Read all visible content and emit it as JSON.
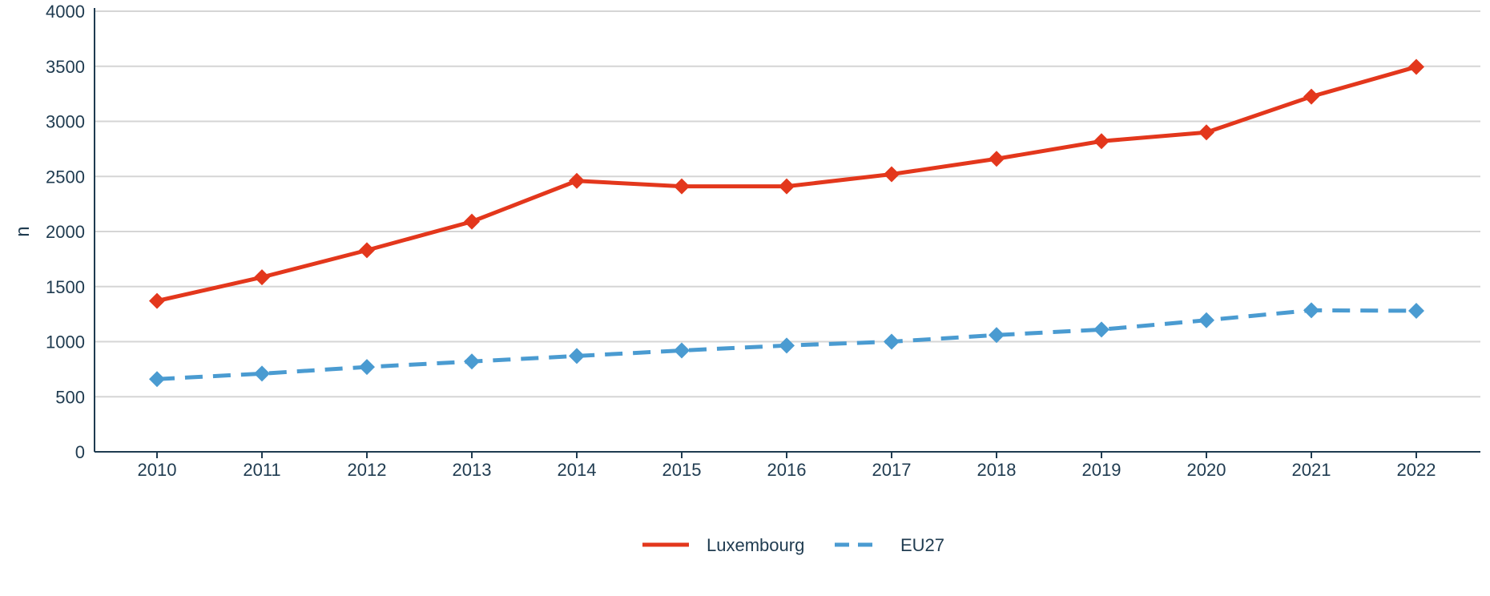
{
  "chart_data": {
    "type": "line",
    "x": [
      2010,
      2011,
      2012,
      2013,
      2014,
      2015,
      2016,
      2017,
      2018,
      2019,
      2020,
      2021,
      2022
    ],
    "categories": [
      "2010",
      "2011",
      "2012",
      "2013",
      "2014",
      "2015",
      "2016",
      "2017",
      "2018",
      "2019",
      "2020",
      "2021",
      "2022"
    ],
    "series": [
      {
        "name": "Luxembourg",
        "values": [
          1370,
          1585,
          1830,
          2090,
          2460,
          2410,
          2410,
          2520,
          2660,
          2820,
          2900,
          3225,
          3495
        ],
        "color": "#e3371c",
        "line_style": "solid",
        "marker": "diamond"
      },
      {
        "name": "EU27",
        "values": [
          660,
          710,
          770,
          820,
          870,
          920,
          965,
          1000,
          1060,
          1110,
          1195,
          1285,
          1280
        ],
        "color": "#4a9bd1",
        "line_style": "dashed",
        "marker": "diamond"
      }
    ],
    "ylabel": "n",
    "xlabel": "",
    "ylim": [
      0,
      4000
    ],
    "yticks": [
      0,
      500,
      1000,
      1500,
      2000,
      2500,
      3000,
      3500,
      4000
    ],
    "grid": "horizontal",
    "legend_position": "bottom-center"
  }
}
